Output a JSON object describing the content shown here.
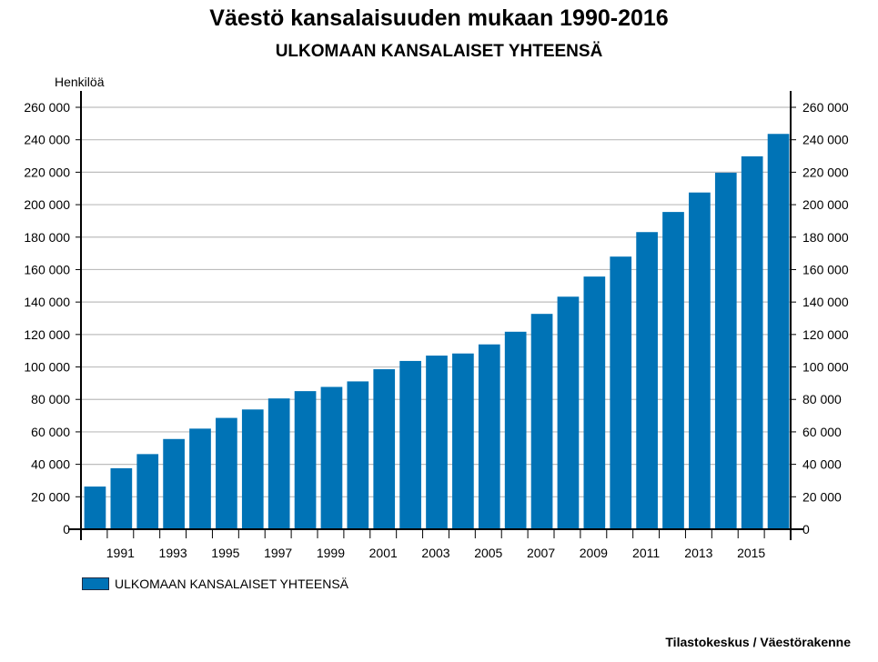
{
  "chart_data": {
    "type": "bar",
    "title": "Väestö kansalaisuuden mukaan 1990-2016",
    "subtitle": "ULKOMAAN KANSALAISET YHTEENSÄ",
    "ylabel": "Henkilöä",
    "xlabel": "",
    "categories": [
      "1990",
      "1991",
      "1992",
      "1993",
      "1994",
      "1995",
      "1996",
      "1997",
      "1998",
      "1999",
      "2000",
      "2001",
      "2002",
      "2003",
      "2004",
      "2005",
      "2006",
      "2007",
      "2008",
      "2009",
      "2010",
      "2011",
      "2012",
      "2013",
      "2014",
      "2015",
      "2016"
    ],
    "x_tick_labels": [
      "1991",
      "1993",
      "1995",
      "1997",
      "1999",
      "2001",
      "2003",
      "2005",
      "2007",
      "2009",
      "2011",
      "2013",
      "2015"
    ],
    "y_tick_labels": [
      "0",
      "20 000",
      "40 000",
      "60 000",
      "80 000",
      "100 000",
      "120 000",
      "140 000",
      "160 000",
      "180 000",
      "200 000",
      "220 000",
      "240 000",
      "260 000"
    ],
    "ylim": [
      0,
      260000
    ],
    "y_ticks": [
      0,
      20000,
      40000,
      60000,
      80000,
      100000,
      120000,
      140000,
      160000,
      180000,
      200000,
      220000,
      240000,
      260000
    ],
    "series": [
      {
        "name": "ULKOMAAN KANSALAISET YHTEENSÄ",
        "color": "#0073b6",
        "values": [
          26300,
          37600,
          46300,
          55600,
          62000,
          68600,
          73800,
          80600,
          85100,
          87700,
          91100,
          98600,
          103700,
          107000,
          108300,
          113900,
          121700,
          132700,
          143300,
          155700,
          168000,
          183100,
          195500,
          207500,
          219700,
          229800,
          243600
        ]
      }
    ],
    "grid": true,
    "legend_position": "bottom-left",
    "source": "Tilastokeskus / Väestörakenne"
  }
}
